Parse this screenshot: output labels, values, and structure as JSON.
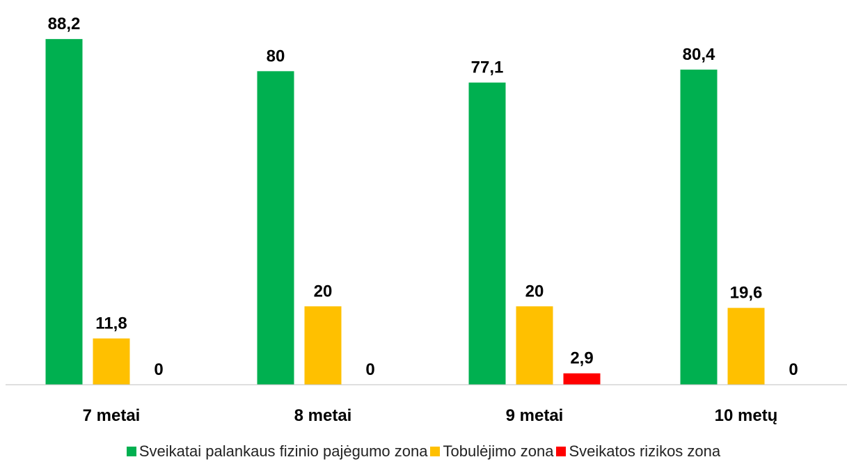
{
  "chart_data": {
    "type": "bar",
    "categories": [
      "7 metai",
      "8 metai",
      "9 metai",
      "10 metų"
    ],
    "series": [
      {
        "name": "Sveikatai palankaus fizinio pajėgumo zona",
        "color": "#00b050",
        "values": [
          88.2,
          80,
          77.1,
          80.4
        ],
        "value_labels": [
          "88,2",
          "80",
          "77,1",
          "80,4"
        ]
      },
      {
        "name": "Tobulėjimo zona",
        "color": "#ffc000",
        "values": [
          11.8,
          20,
          20,
          19.6
        ],
        "value_labels": [
          "11,8",
          "20",
          "20",
          "19,6"
        ]
      },
      {
        "name": "Sveikatos rizikos zona",
        "color": "#ff0000",
        "values": [
          0,
          0,
          2.9,
          0
        ],
        "value_labels": [
          "0",
          "0",
          "2,9",
          "0"
        ]
      }
    ],
    "ylim": [
      0,
      90
    ],
    "legend": "bottom"
  }
}
